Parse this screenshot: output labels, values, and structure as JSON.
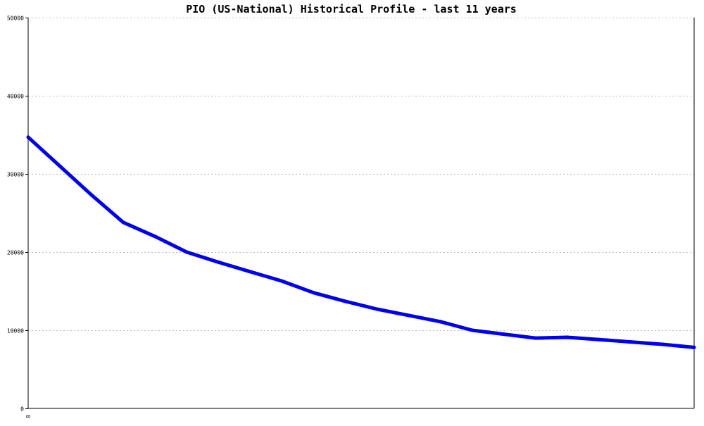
{
  "chart_data": {
    "type": "line",
    "title": "PIO (US-National) Historical Profile - last 11 years",
    "xlabel": "",
    "ylabel": "",
    "x_tick_labels": [
      "0"
    ],
    "y_ticks": [
      0,
      10000,
      20000,
      30000,
      40000,
      50000
    ],
    "y_tick_labels": [
      "0",
      "10000",
      "20000",
      "30000",
      "40000",
      "50000"
    ],
    "ylim": [
      0,
      50000
    ],
    "grid": true,
    "legend": "none",
    "series": [
      {
        "color": "#0000ee",
        "values": [
          34700,
          31000,
          27300,
          23800,
          22000,
          20000,
          18700,
          17500,
          16300,
          14800,
          13700,
          12700,
          11900,
          11100,
          10000,
          9500,
          9000,
          9100,
          8800,
          8500,
          8200,
          7800
        ]
      }
    ]
  }
}
